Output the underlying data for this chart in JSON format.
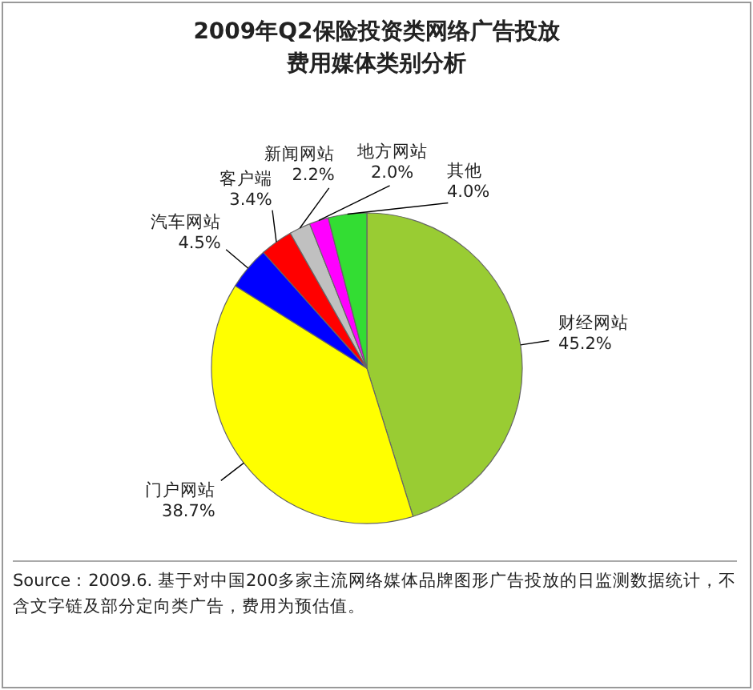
{
  "chart_data": {
    "type": "pie",
    "title": "2009年Q2保险投资类网络广告投放费用媒体类别分析",
    "categories": [
      "财经网站",
      "门户网站",
      "汽车网站",
      "客户端",
      "新闻网站",
      "地方网站",
      "其他"
    ],
    "values": [
      45.2,
      38.7,
      4.5,
      3.4,
      2.2,
      2.0,
      4.0
    ],
    "colors": [
      "#99cc33",
      "#ffff00",
      "#0000ff",
      "#ff0000",
      "#c0c0c0",
      "#ff00ff",
      "#33dd33"
    ],
    "value_labels": [
      "45.2%",
      "38.7%",
      "4.5%",
      "3.4%",
      "2.2%",
      "2.0%",
      "4.0%"
    ],
    "annotations": [
      "Source：2009.6. 基于对中国200多家主流网络媒体品牌图形广告投放的日监测数据统计，不含文字链及部分定向类广告，费用为预估值。"
    ]
  }
}
